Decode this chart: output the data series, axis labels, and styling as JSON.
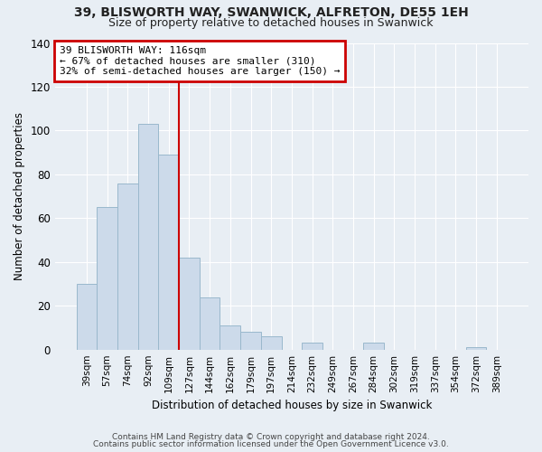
{
  "title": "39, BLISWORTH WAY, SWANWICK, ALFRETON, DE55 1EH",
  "subtitle": "Size of property relative to detached houses in Swanwick",
  "xlabel": "Distribution of detached houses by size in Swanwick",
  "ylabel": "Number of detached properties",
  "categories": [
    "39sqm",
    "57sqm",
    "74sqm",
    "92sqm",
    "109sqm",
    "127sqm",
    "144sqm",
    "162sqm",
    "179sqm",
    "197sqm",
    "214sqm",
    "232sqm",
    "249sqm",
    "267sqm",
    "284sqm",
    "302sqm",
    "319sqm",
    "337sqm",
    "354sqm",
    "372sqm",
    "389sqm"
  ],
  "values": [
    30,
    65,
    76,
    103,
    89,
    42,
    24,
    11,
    8,
    6,
    0,
    3,
    0,
    0,
    3,
    0,
    0,
    0,
    0,
    1,
    0
  ],
  "bar_color": "#ccdaea",
  "bar_edgecolor": "#9ab8cc",
  "vline_color": "#cc0000",
  "vline_pos": 4.5,
  "ylim": [
    0,
    140
  ],
  "yticks": [
    0,
    20,
    40,
    60,
    80,
    100,
    120,
    140
  ],
  "annotation_title": "39 BLISWORTH WAY: 116sqm",
  "annotation_line1": "← 67% of detached houses are smaller (310)",
  "annotation_line2": "32% of semi-detached houses are larger (150) →",
  "annotation_box_edgecolor": "#cc0000",
  "footnote1": "Contains HM Land Registry data © Crown copyright and database right 2024.",
  "footnote2": "Contains public sector information licensed under the Open Government Licence v3.0.",
  "background_color": "#e8eef4",
  "plot_background": "#e8eef4"
}
